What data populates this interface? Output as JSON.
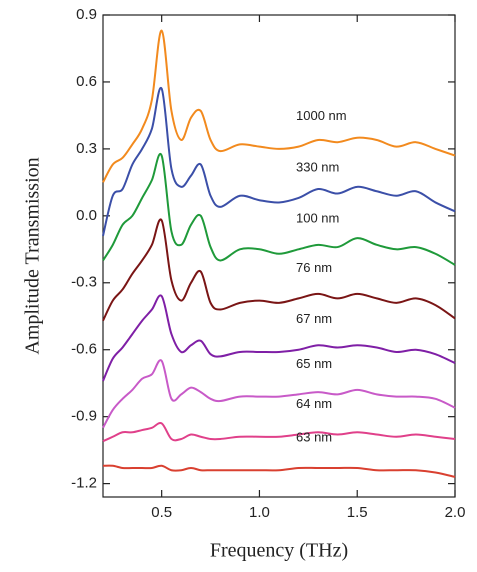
{
  "chart_data": {
    "type": "line",
    "xlabel": "Frequency (THz)",
    "ylabel": "Amplitude Transmission",
    "x": [
      0.2,
      0.25,
      0.3,
      0.35,
      0.4,
      0.45,
      0.5,
      0.55,
      0.6,
      0.65,
      0.7,
      0.75,
      0.8,
      0.9,
      1.0,
      1.1,
      1.2,
      1.3,
      1.4,
      1.5,
      1.6,
      1.7,
      1.8,
      1.9,
      2.0
    ],
    "series": [
      {
        "name": "1000 nm",
        "color": "#f28a1e",
        "values": [
          0.15,
          0.23,
          0.26,
          0.32,
          0.39,
          0.52,
          0.83,
          0.47,
          0.34,
          0.44,
          0.47,
          0.34,
          0.29,
          0.32,
          0.31,
          0.3,
          0.31,
          0.34,
          0.33,
          0.35,
          0.34,
          0.31,
          0.33,
          0.3,
          0.27
        ]
      },
      {
        "name": "330 nm",
        "color": "#3b4fa8",
        "values": [
          -0.09,
          0.09,
          0.12,
          0.23,
          0.3,
          0.39,
          0.57,
          0.21,
          0.13,
          0.18,
          0.23,
          0.09,
          0.04,
          0.09,
          0.07,
          0.06,
          0.08,
          0.12,
          0.1,
          0.13,
          0.11,
          0.09,
          0.11,
          0.06,
          0.02
        ]
      },
      {
        "name": "100 nm",
        "color": "#1f9a3a",
        "values": [
          -0.2,
          -0.13,
          -0.04,
          0.0,
          0.08,
          0.16,
          0.27,
          -0.07,
          -0.13,
          -0.04,
          0.0,
          -0.14,
          -0.2,
          -0.15,
          -0.15,
          -0.17,
          -0.15,
          -0.13,
          -0.14,
          -0.1,
          -0.13,
          -0.15,
          -0.14,
          -0.17,
          -0.22
        ]
      },
      {
        "name": "76 nm",
        "color": "#7a1515",
        "values": [
          -0.47,
          -0.38,
          -0.33,
          -0.26,
          -0.2,
          -0.13,
          -0.02,
          -0.29,
          -0.38,
          -0.3,
          -0.25,
          -0.39,
          -0.42,
          -0.39,
          -0.38,
          -0.39,
          -0.37,
          -0.35,
          -0.37,
          -0.35,
          -0.37,
          -0.39,
          -0.37,
          -0.4,
          -0.46
        ]
      },
      {
        "name": "67 nm",
        "color": "#7f1fa6",
        "values": [
          -0.74,
          -0.64,
          -0.59,
          -0.53,
          -0.47,
          -0.42,
          -0.36,
          -0.53,
          -0.61,
          -0.58,
          -0.56,
          -0.62,
          -0.63,
          -0.61,
          -0.61,
          -0.61,
          -0.6,
          -0.58,
          -0.59,
          -0.58,
          -0.59,
          -0.61,
          -0.6,
          -0.62,
          -0.66
        ]
      },
      {
        "name": "65 nm",
        "color": "#c85ac8",
        "values": [
          -0.95,
          -0.87,
          -0.82,
          -0.78,
          -0.73,
          -0.71,
          -0.65,
          -0.82,
          -0.8,
          -0.77,
          -0.79,
          -0.82,
          -0.83,
          -0.81,
          -0.81,
          -0.81,
          -0.8,
          -0.79,
          -0.8,
          -0.78,
          -0.8,
          -0.81,
          -0.81,
          -0.82,
          -0.86
        ]
      },
      {
        "name": "64 nm",
        "color": "#e0408a",
        "values": [
          -1.01,
          -0.99,
          -0.97,
          -0.97,
          -0.96,
          -0.95,
          -0.93,
          -1.0,
          -1.0,
          -0.98,
          -0.99,
          -1.0,
          -1.0,
          -0.99,
          -0.99,
          -0.99,
          -0.98,
          -0.97,
          -0.98,
          -0.97,
          -0.98,
          -0.99,
          -0.98,
          -0.99,
          -1.0
        ]
      },
      {
        "name": "63 nm",
        "color": "#d94030",
        "values": [
          -1.12,
          -1.12,
          -1.13,
          -1.13,
          -1.13,
          -1.13,
          -1.12,
          -1.14,
          -1.14,
          -1.13,
          -1.14,
          -1.14,
          -1.14,
          -1.14,
          -1.14,
          -1.14,
          -1.13,
          -1.13,
          -1.13,
          -1.13,
          -1.14,
          -1.14,
          -1.14,
          -1.15,
          -1.17
        ]
      }
    ],
    "xlim": [
      0.2,
      2.0
    ],
    "xticks": [
      0.5,
      {
        "value": 1.0,
        "label": "1.0"
      },
      1.5,
      {
        "value": 2.0,
        "label": "2.0"
      }
    ],
    "ylim": [
      -1.26,
      0.9
    ],
    "yticks": [
      0.9,
      0.6,
      0.3,
      {
        "value": 0,
        "label": "0.0"
      },
      -0.3,
      -0.6,
      -0.9,
      -1.2
    ],
    "grid": false
  }
}
